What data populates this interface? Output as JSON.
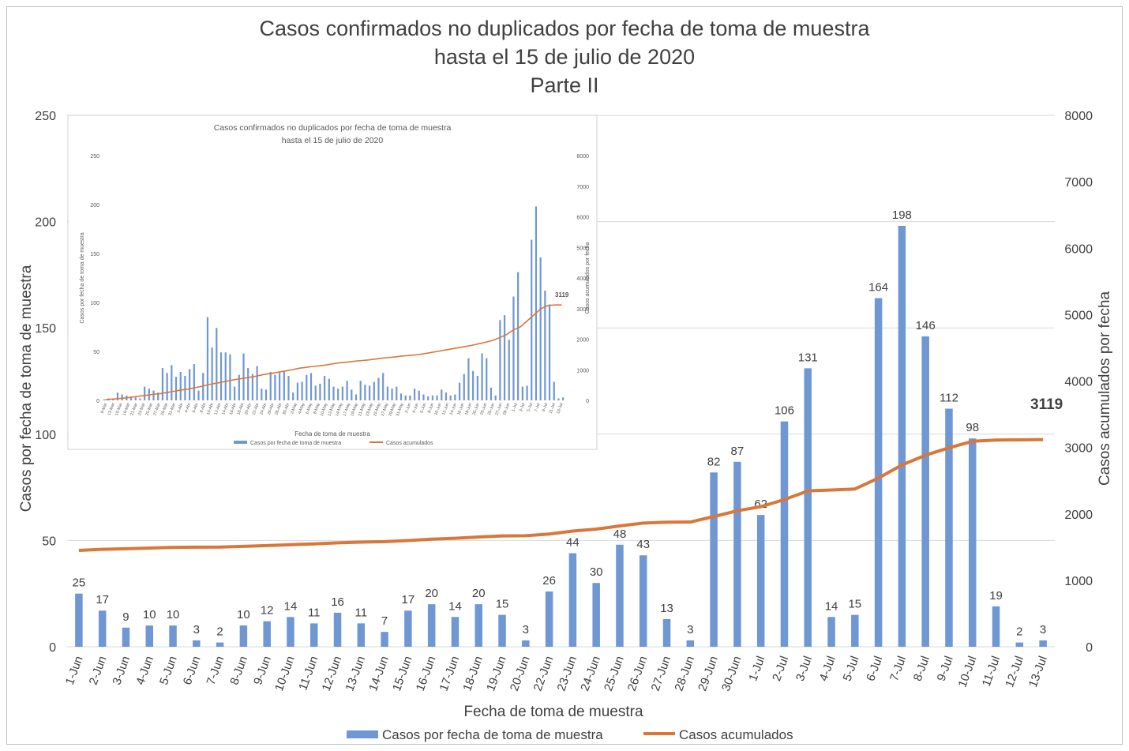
{
  "chart_data": {
    "type": "bar",
    "title": [
      "Casos confirmados no duplicados por fecha de toma de muestra",
      "hasta el 15 de julio de 2020",
      "Parte II"
    ],
    "xlabel": "Fecha de toma de muestra",
    "ylabel": "Casos por fecha de toma de muestra",
    "y2label": "Casos acumulados por fecha",
    "ylim": [
      0,
      250
    ],
    "y2lim": [
      0,
      8000
    ],
    "yticks": [
      "0",
      "50",
      "100",
      "150",
      "200",
      "250"
    ],
    "y2ticks": [
      "0",
      "1000",
      "2000",
      "3000",
      "4000",
      "5000",
      "6000",
      "7000",
      "8000"
    ],
    "grid": true,
    "legend_position": "bottom",
    "colors": {
      "bars": "#6f97d4",
      "line": "#d9773a"
    },
    "categories": [
      "1-Jun",
      "2-Jun",
      "3-Jun",
      "4-Jun",
      "5-Jun",
      "6-Jun",
      "7-Jun",
      "8-Jun",
      "9-Jun",
      "10-Jun",
      "11-Jun",
      "12-Jun",
      "13-Jun",
      "14-Jun",
      "15-Jun",
      "16-Jun",
      "17-Jun",
      "18-Jun",
      "19-Jun",
      "20-Jun",
      "22-Jun",
      "23-Jun",
      "24-Jun",
      "25-Jun",
      "26-Jun",
      "27-Jun",
      "28-Jun",
      "29-Jun",
      "30-Jun",
      "1-Jul",
      "2-Jul",
      "3-Jul",
      "4-Jul",
      "5-Jul",
      "6-Jul",
      "7-Jul",
      "8-Jul",
      "9-Jul",
      "10-Jul",
      "11-Jul",
      "12-Jul",
      "13-Jul"
    ],
    "series": [
      {
        "name": "Casos por fecha de toma de muestra",
        "type": "bar",
        "axis": "left",
        "values": [
          25,
          17,
          9,
          10,
          10,
          3,
          2,
          10,
          12,
          14,
          11,
          16,
          11,
          7,
          17,
          20,
          14,
          20,
          15,
          3,
          26,
          44,
          30,
          48,
          43,
          13,
          3,
          82,
          87,
          62,
          106,
          131,
          14,
          15,
          164,
          198,
          146,
          112,
          98,
          19,
          2,
          3
        ]
      },
      {
        "name": "Casos acumulados",
        "type": "line",
        "axis": "right",
        "values": [
          1450,
          1467,
          1476,
          1486,
          1496,
          1499,
          1501,
          1511,
          1523,
          1537,
          1548,
          1564,
          1575,
          1582,
          1599,
          1619,
          1633,
          1653,
          1668,
          1671,
          1697,
          1741,
          1771,
          1819,
          1862,
          1875,
          1878,
          1960,
          2047,
          2109,
          2215,
          2346,
          2360,
          2375,
          2539,
          2737,
          2883,
          2995,
          3093,
          3112,
          3114,
          3119
        ]
      }
    ],
    "annotations": [
      "3119"
    ]
  },
  "inset": {
    "title_line1": "Casos confirmados no duplicados por fecha de toma de muestra",
    "title_line2": "hasta el 15 de julio de 2020",
    "ylabel": "Casos por fecha de toma de muestra",
    "y2label": "Casos acumulados por fecha",
    "xlabel": "Fecha de toma de muestra",
    "yticks": [
      "0",
      "50",
      "100",
      "150",
      "200",
      "250"
    ],
    "y2ticks": [
      "0",
      "1000",
      "2000",
      "3000",
      "4000",
      "5000",
      "6000",
      "7000",
      "8000"
    ],
    "final_value": "3119",
    "legend_bar": "Casos por fecha de toma de muestra",
    "legend_line": "Casos acumulados",
    "categories": [
      "9-Mar",
      "13-Mar",
      "15-Mar",
      "19-Mar",
      "21-Mar",
      "23-Mar",
      "25-Mar",
      "27-Mar",
      "29-Mar",
      "31-Mar",
      "2-Abr",
      "4-Abr",
      "6-Abr",
      "8-Abr",
      "10-Abr",
      "12-Abr",
      "14-Abr",
      "16-Abr",
      "18-Abr",
      "20-Abr",
      "22-Abr",
      "24-Abr",
      "26-Abr",
      "28-Abr",
      "30-Abr",
      "2-May",
      "4-May",
      "6-May",
      "8-May",
      "10-May",
      "12-May",
      "14-May",
      "17-May",
      "19-May",
      "21-May",
      "23-May",
      "25-May",
      "27-May",
      "29-May",
      "31-May",
      "2-Jun",
      "4-Jun",
      "6-Jun",
      "8-Jun",
      "10-Jun",
      "12-Jun",
      "14-Jun",
      "16-Jun",
      "18-Jun",
      "20-Jun",
      "23-Jun",
      "25-Jun",
      "27-Jun",
      "29-Jun",
      "1-Jul",
      "3-Jul",
      "5-Jul",
      "7-Jul",
      "9-Jul",
      "11-Jul",
      "13-Jul"
    ],
    "bars": [
      1,
      2,
      1,
      8,
      6,
      5,
      4,
      3,
      2,
      14,
      12,
      10,
      8,
      33,
      28,
      36,
      24,
      29,
      25,
      32,
      37,
      10,
      28,
      85,
      54,
      74,
      49,
      49,
      47,
      14,
      26,
      48,
      33,
      27,
      35,
      12,
      11,
      29,
      26,
      28,
      30,
      25,
      8,
      18,
      19,
      26,
      28,
      15,
      17,
      25,
      22,
      14,
      12,
      14,
      20,
      11,
      6,
      20,
      16,
      15,
      19,
      23,
      28,
      14,
      12,
      14,
      7,
      5,
      5,
      12,
      10,
      6,
      4,
      5,
      5,
      11,
      8,
      5,
      6,
      18,
      27,
      43,
      30,
      25,
      48,
      43,
      13,
      5,
      82,
      87,
      62,
      106,
      131,
      14,
      15,
      164,
      198,
      146,
      112,
      98,
      19,
      2,
      3
    ],
    "line": [
      20,
      40,
      60,
      80,
      110,
      140,
      170,
      200,
      220,
      260,
      300,
      340,
      370,
      420,
      460,
      520,
      560,
      600,
      650,
      690,
      720,
      760,
      800,
      850,
      880,
      920,
      960,
      1000,
      1050,
      1080,
      1110,
      1130,
      1160,
      1200,
      1230,
      1250,
      1280,
      1300,
      1320,
      1350,
      1380,
      1400,
      1420,
      1450,
      1470,
      1490,
      1520,
      1560,
      1600,
      1640,
      1680,
      1720,
      1760,
      1800,
      1850,
      1900,
      1960,
      2050,
      2150,
      2300,
      2400,
      2600,
      2800,
      3000,
      3100,
      3119,
      3119
    ]
  }
}
